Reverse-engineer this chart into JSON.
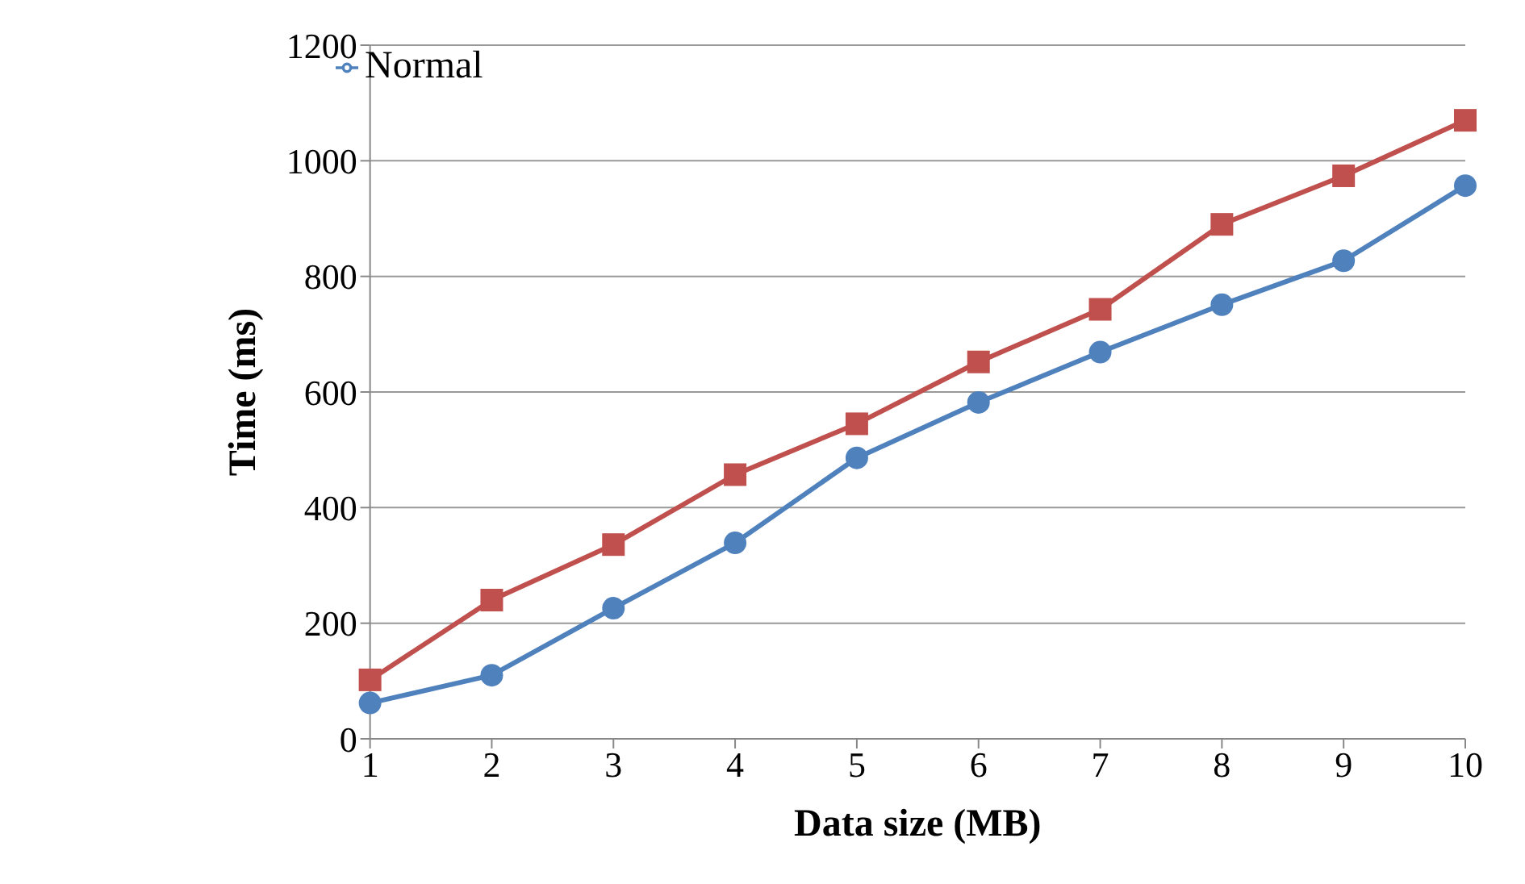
{
  "chart_data": {
    "type": "line",
    "xlabel": "Data size (MB)",
    "ylabel": "Time (ms)",
    "categories": [
      "1",
      "2",
      "3",
      "4",
      "5",
      "6",
      "7",
      "8",
      "9",
      "10"
    ],
    "series": [
      {
        "name": "Normal",
        "color": "#4f81bd",
        "marker": "circle",
        "values": [
          62,
          110,
          226,
          339,
          486,
          582,
          669,
          751,
          827,
          957
        ]
      },
      {
        "color": "#c0504d",
        "marker": "square",
        "values": [
          102,
          240,
          336,
          457,
          545,
          652,
          743,
          890,
          974,
          1070
        ]
      }
    ],
    "ylim": [
      0,
      1200
    ],
    "yticks": [
      0,
      200,
      400,
      600,
      800,
      1000,
      1200
    ],
    "grid": "y",
    "legend": "top left",
    "line_style": "solid"
  }
}
